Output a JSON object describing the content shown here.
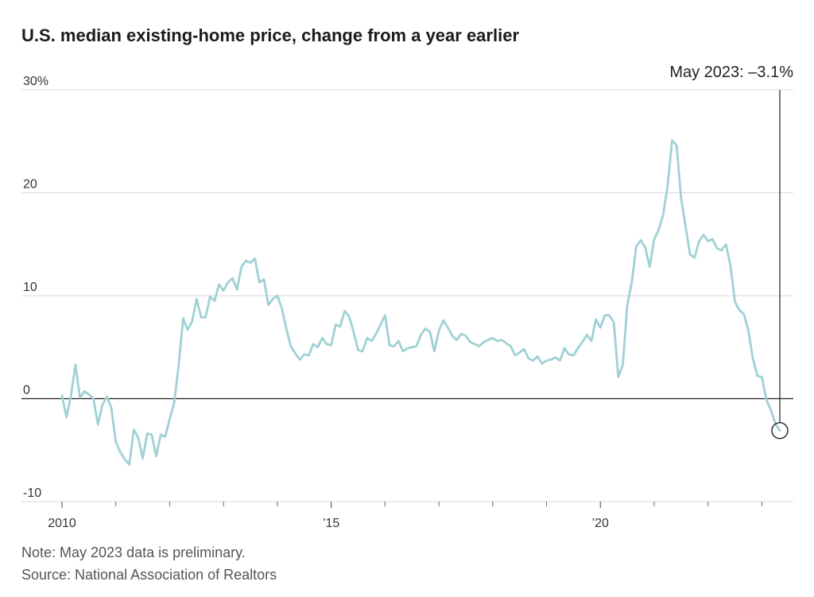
{
  "chart_data": {
    "type": "line",
    "title": "U.S. median existing-home price, change from a year earlier",
    "xlabel": "",
    "ylabel": "",
    "ylim": [
      -10,
      30
    ],
    "xlim": [
      "2010-01",
      "2023-05"
    ],
    "y_ticks": [
      {
        "value": 30,
        "label": "30%"
      },
      {
        "value": 20,
        "label": "20"
      },
      {
        "value": 10,
        "label": "10"
      },
      {
        "value": 0,
        "label": "0"
      },
      {
        "value": -10,
        "label": "-10"
      }
    ],
    "x_tick_labels": [
      {
        "year": 2010,
        "label": "2010"
      },
      {
        "year": 2015,
        "label": "’15"
      },
      {
        "year": 2020,
        "label": "’20"
      }
    ],
    "x_minor_tick_years": [
      2011,
      2012,
      2013,
      2014,
      2016,
      2017,
      2018,
      2019,
      2021,
      2022,
      2023
    ],
    "grid": true,
    "annotation": {
      "text": "May 2023: –3.1%",
      "x": "2023-05",
      "y": -3.1
    },
    "series": [
      {
        "color": "#9fd1d5",
        "x": [
          "2010-01",
          "2010-02",
          "2010-03",
          "2010-04",
          "2010-05",
          "2010-06",
          "2010-07",
          "2010-08",
          "2010-09",
          "2010-10",
          "2010-11",
          "2010-12",
          "2011-01",
          "2011-02",
          "2011-03",
          "2011-04",
          "2011-05",
          "2011-06",
          "2011-07",
          "2011-08",
          "2011-09",
          "2011-10",
          "2011-11",
          "2011-12",
          "2012-01",
          "2012-02",
          "2012-03",
          "2012-04",
          "2012-05",
          "2012-06",
          "2012-07",
          "2012-08",
          "2012-09",
          "2012-10",
          "2012-11",
          "2012-12",
          "2013-01",
          "2013-02",
          "2013-03",
          "2013-04",
          "2013-05",
          "2013-06",
          "2013-07",
          "2013-08",
          "2013-09",
          "2013-10",
          "2013-11",
          "2013-12",
          "2014-01",
          "2014-02",
          "2014-03",
          "2014-04",
          "2014-05",
          "2014-06",
          "2014-07",
          "2014-08",
          "2014-09",
          "2014-10",
          "2014-11",
          "2014-12",
          "2015-01",
          "2015-02",
          "2015-03",
          "2015-04",
          "2015-05",
          "2015-06",
          "2015-07",
          "2015-08",
          "2015-09",
          "2015-10",
          "2015-11",
          "2015-12",
          "2016-01",
          "2016-02",
          "2016-03",
          "2016-04",
          "2016-05",
          "2016-06",
          "2016-07",
          "2016-08",
          "2016-09",
          "2016-10",
          "2016-11",
          "2016-12",
          "2017-01",
          "2017-02",
          "2017-03",
          "2017-04",
          "2017-05",
          "2017-06",
          "2017-07",
          "2017-08",
          "2017-09",
          "2017-10",
          "2017-11",
          "2017-12",
          "2018-01",
          "2018-02",
          "2018-03",
          "2018-04",
          "2018-05",
          "2018-06",
          "2018-07",
          "2018-08",
          "2018-09",
          "2018-10",
          "2018-11",
          "2018-12",
          "2019-01",
          "2019-02",
          "2019-03",
          "2019-04",
          "2019-05",
          "2019-06",
          "2019-07",
          "2019-08",
          "2019-09",
          "2019-10",
          "2019-11",
          "2019-12",
          "2020-01",
          "2020-02",
          "2020-03",
          "2020-04",
          "2020-05",
          "2020-06",
          "2020-07",
          "2020-08",
          "2020-09",
          "2020-10",
          "2020-11",
          "2020-12",
          "2021-01",
          "2021-02",
          "2021-03",
          "2021-04",
          "2021-05",
          "2021-06",
          "2021-07",
          "2021-08",
          "2021-09",
          "2021-10",
          "2021-11",
          "2021-12",
          "2022-01",
          "2022-02",
          "2022-03",
          "2022-04",
          "2022-05",
          "2022-06",
          "2022-07",
          "2022-08",
          "2022-09",
          "2022-10",
          "2022-11",
          "2022-12",
          "2023-01",
          "2023-02",
          "2023-03",
          "2023-04",
          "2023-05"
        ],
        "values": [
          0.3,
          -1.8,
          0.3,
          3.3,
          0.1,
          0.7,
          0.4,
          0.0,
          -2.5,
          -0.6,
          0.2,
          -0.9,
          -4.2,
          -5.2,
          -5.9,
          -6.4,
          -3.0,
          -3.8,
          -5.8,
          -3.4,
          -3.5,
          -5.6,
          -3.5,
          -3.7,
          -2.0,
          -0.4,
          3.2,
          7.8,
          6.7,
          7.5,
          9.7,
          7.9,
          7.9,
          9.9,
          9.5,
          11.1,
          10.5,
          11.3,
          11.7,
          10.6,
          12.8,
          13.4,
          13.2,
          13.6,
          11.3,
          11.6,
          9.1,
          9.7,
          10.0,
          8.8,
          6.8,
          5.1,
          4.4,
          3.8,
          4.3,
          4.2,
          5.3,
          5.0,
          5.9,
          5.3,
          5.2,
          7.2,
          7.0,
          8.5,
          8.0,
          6.5,
          4.7,
          4.6,
          5.9,
          5.6,
          6.3,
          7.2,
          8.1,
          5.2,
          5.1,
          5.6,
          4.6,
          4.9,
          5.0,
          5.1,
          6.2,
          6.8,
          6.5,
          4.6,
          6.6,
          7.6,
          6.9,
          6.1,
          5.7,
          6.3,
          6.1,
          5.5,
          5.3,
          5.1,
          5.5,
          5.7,
          5.9,
          5.6,
          5.7,
          5.4,
          5.1,
          4.2,
          4.5,
          4.8,
          3.9,
          3.7,
          4.1,
          3.4,
          3.7,
          3.8,
          4.0,
          3.7,
          4.9,
          4.3,
          4.2,
          4.9,
          5.5,
          6.2,
          5.6,
          7.7,
          6.9,
          8.1,
          8.1,
          7.4,
          2.1,
          3.3,
          9.1,
          11.3,
          14.8,
          15.4,
          14.7,
          12.8,
          15.5,
          16.4,
          17.9,
          20.7,
          25.1,
          24.6,
          19.5,
          16.7,
          14.0,
          13.7,
          15.3,
          15.9,
          15.3,
          15.5,
          14.6,
          14.4,
          15.0,
          12.9,
          9.4,
          8.6,
          8.2,
          6.6,
          3.9,
          2.2,
          2.1,
          -0.1,
          -1.1,
          -2.4,
          -3.1
        ]
      }
    ]
  },
  "notes": {
    "line1": "Note: May 2023 data is preliminary.",
    "line2": "Source: National Association of Realtors"
  },
  "colors": {
    "line": "#9fd1d5",
    "zero_axis": "#222222",
    "grid": "#d9d9d9",
    "text": "#222222",
    "muted_text": "#555555"
  }
}
